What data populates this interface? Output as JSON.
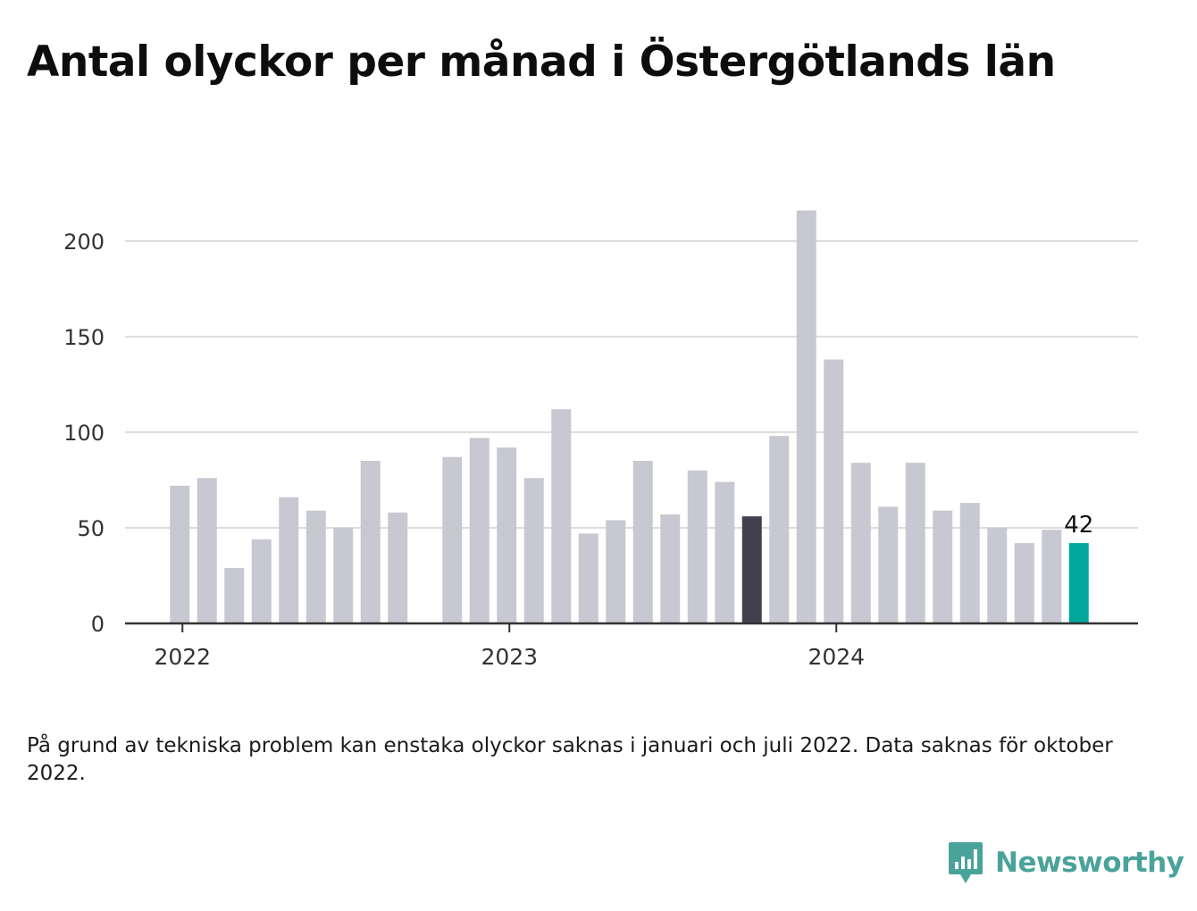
{
  "title": "Antal olyckor per månad i Östergötlands län",
  "footnote": "På grund av tekniska problem kan enstaka olyckor saknas i januari och juli 2022. Data saknas för oktober 2022.",
  "brand": {
    "name": "Newsworthy",
    "icon": "bar-chart-speech-bubble-icon",
    "color": "#4aa39a"
  },
  "colors": {
    "bar_default": "#c8c8d2",
    "bar_previous_year": "#42414f",
    "bar_latest": "#00a79b",
    "grid": "#dcdcdc",
    "axis": "#333333"
  },
  "chart_data": {
    "type": "bar",
    "title": "Antal olyckor per månad i Östergötlands län",
    "xlabel": "",
    "ylabel": "",
    "ylim": [
      0,
      220
    ],
    "yticks": [
      0,
      50,
      100,
      150,
      200
    ],
    "xtick_labels": [
      {
        "label": "2022",
        "at": "2022-01"
      },
      {
        "label": "2023",
        "at": "2023-01"
      },
      {
        "label": "2024",
        "at": "2024-01"
      }
    ],
    "grid": "horizontal",
    "categories": [
      "2022-01",
      "2022-02",
      "2022-03",
      "2022-04",
      "2022-05",
      "2022-06",
      "2022-07",
      "2022-08",
      "2022-09",
      "2022-10",
      "2022-11",
      "2022-12",
      "2023-01",
      "2023-02",
      "2023-03",
      "2023-04",
      "2023-05",
      "2023-06",
      "2023-07",
      "2023-08",
      "2023-09",
      "2023-10",
      "2023-11",
      "2023-12",
      "2024-01",
      "2024-02",
      "2024-03",
      "2024-04",
      "2024-05",
      "2024-06",
      "2024-07",
      "2024-08",
      "2024-09",
      "2024-10"
    ],
    "values": [
      72,
      76,
      29,
      44,
      66,
      59,
      50,
      85,
      58,
      null,
      87,
      97,
      92,
      76,
      112,
      47,
      54,
      85,
      57,
      80,
      74,
      56,
      98,
      216,
      138,
      84,
      61,
      84,
      59,
      63,
      50,
      42,
      49,
      42
    ],
    "highlights": {
      "2023-10": "bar_previous_year",
      "2024-10": "bar_latest"
    },
    "data_labels": [
      {
        "category": "2024-10",
        "text": "42"
      }
    ]
  }
}
